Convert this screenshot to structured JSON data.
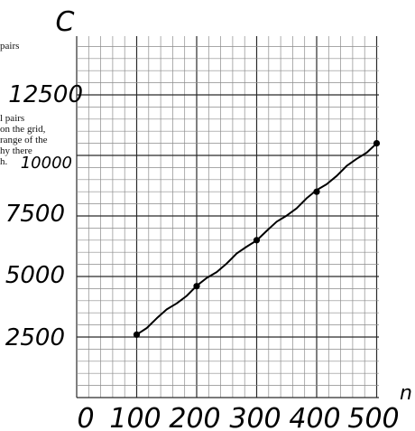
{
  "background_text": {
    "line1": "pairs",
    "line2": "l pairs",
    "line3": "on the grid,",
    "line4": "range of the",
    "line5": "hy there",
    "line6": "h."
  },
  "chart_data": {
    "type": "scatter",
    "title": "",
    "xlabel": "n",
    "ylabel": "C",
    "x_ticks": [
      "0",
      "100",
      "200",
      "300",
      "400",
      "500"
    ],
    "y_ticks": [
      "2500",
      "5000",
      "7500",
      "10000",
      "12500"
    ],
    "xlim": [
      0,
      500
    ],
    "ylim": [
      0,
      15000
    ],
    "grid": true,
    "series": [
      {
        "x": [
          100,
          200,
          300,
          400,
          500
        ],
        "y": [
          2600,
          4600,
          6500,
          8500,
          10500
        ]
      }
    ],
    "trend_line": {
      "x": [
        100,
        500
      ],
      "y": [
        2600,
        10500
      ]
    },
    "colors": {
      "ink": "#000000",
      "grid_minor": "#8c8c8c",
      "grid_major": "#2a2a2a"
    }
  }
}
